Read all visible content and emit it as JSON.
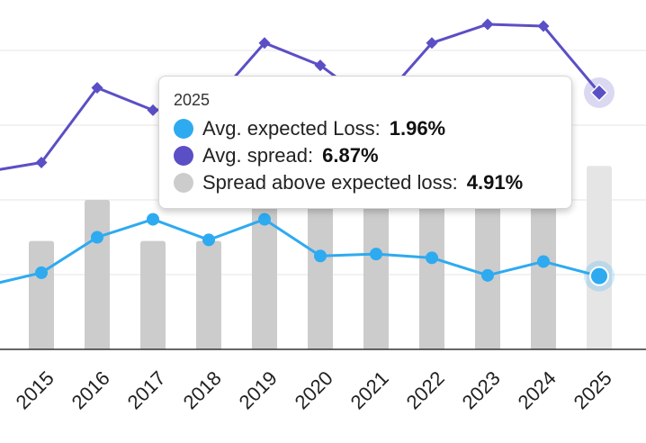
{
  "chart_data": {
    "type": "bar",
    "categories": [
      "2015",
      "2016",
      "2017",
      "2018",
      "2019",
      "2020",
      "2021",
      "2022",
      "2023",
      "2024",
      "2025"
    ],
    "series": [
      {
        "name": "Spread above expected loss",
        "kind": "bar",
        "color": "#cccccc",
        "highlight_color": "#e5e5e5",
        "values": [
          2.9,
          4.0,
          2.9,
          2.9,
          3.9,
          4.0,
          4.3,
          4.3,
          4.5,
          4.4,
          4.91
        ]
      },
      {
        "name": "Avg. expected Loss",
        "kind": "line",
        "color": "#2eaaf0",
        "values": [
          2.05,
          3.0,
          3.48,
          2.93,
          3.48,
          2.5,
          2.55,
          2.45,
          1.98,
          2.35,
          1.96
        ]
      },
      {
        "name": "Avg. spread",
        "kind": "line",
        "color": "#5b4fc6",
        "values": [
          5.0,
          7.0,
          6.4,
          6.5,
          8.2,
          7.6,
          6.5,
          8.2,
          8.7,
          8.65,
          6.87
        ]
      }
    ],
    "ylim": [
      0,
      9.3
    ],
    "grid": true,
    "highlighted_category": "2025"
  },
  "tooltip": {
    "title": "2025",
    "rows": [
      {
        "label": "Avg. expected Loss:",
        "value": "1.96%",
        "color": "#2eaaf0"
      },
      {
        "label": "Avg. spread:",
        "value": "6.87%",
        "color": "#5b4fc6"
      },
      {
        "label": "Spread above expected loss:",
        "value": "4.91%",
        "color": "#cccccc"
      }
    ]
  }
}
